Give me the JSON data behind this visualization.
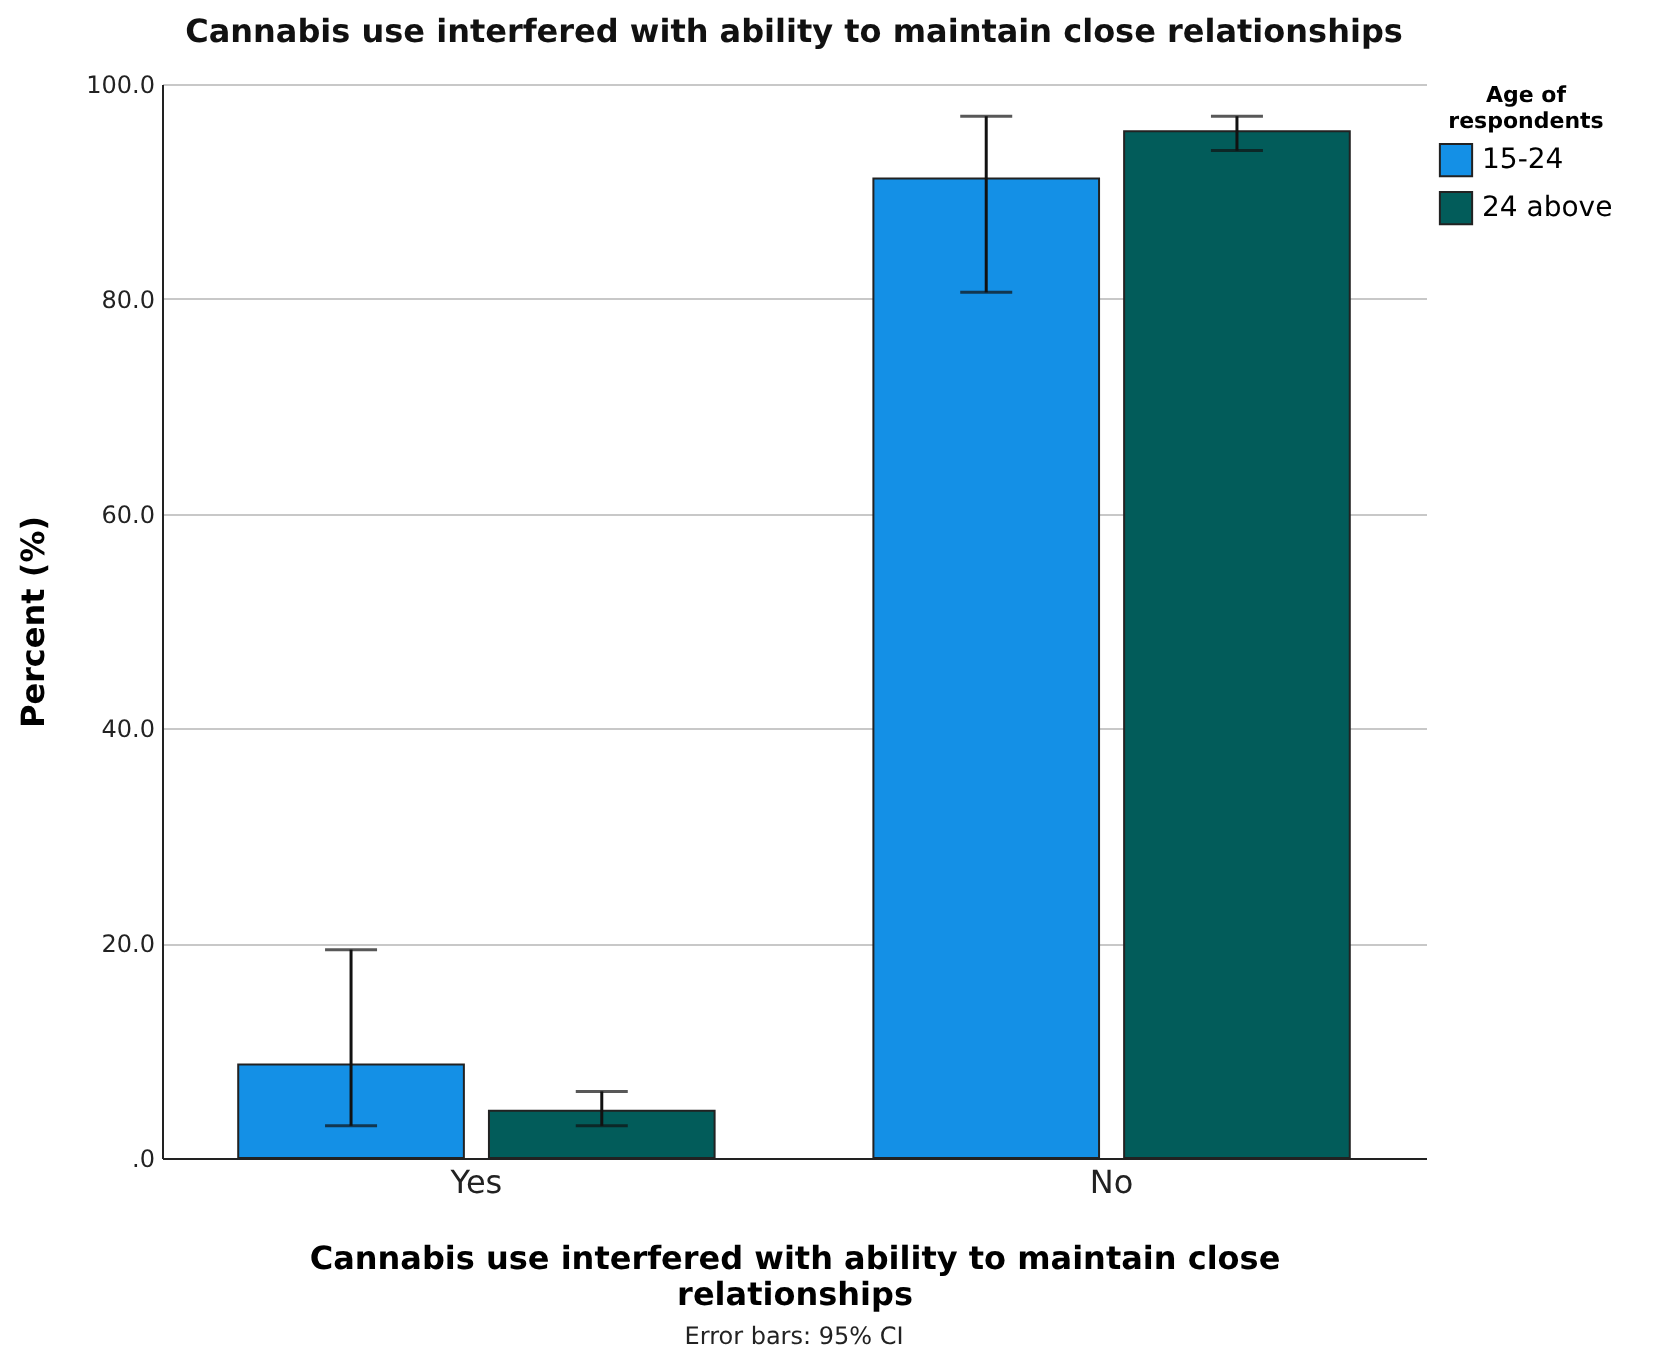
{
  "chart_data": {
    "type": "bar",
    "title": "Cannabis use interfered with ability to maintain close relationships",
    "xlabel": "Cannabis use interfered with ability to maintain close relationships",
    "ylabel": "Percent (%)",
    "legend_title": "Age of respondents",
    "annotations": [
      "Error bars: 95% CI"
    ],
    "categories": [
      "Yes",
      "No"
    ],
    "series": [
      {
        "name": "15-24",
        "color": "#1490e6",
        "values": [
          8.7,
          91.2
        ],
        "errors": [
          [
            3.0,
            19.4
          ],
          [
            80.6,
            97.0
          ]
        ]
      },
      {
        "name": "24 above",
        "color": "#025c5a",
        "values": [
          4.4,
          95.6
        ],
        "errors": [
          [
            3.0,
            6.2
          ],
          [
            93.8,
            97.0
          ]
        ]
      }
    ],
    "ylim": [
      0,
      100
    ],
    "yticks": [
      {
        "value": 0,
        "label": ".0"
      },
      {
        "value": 20,
        "label": "20.0"
      },
      {
        "value": 40,
        "label": "40.0"
      },
      {
        "value": 60,
        "label": "60.0"
      },
      {
        "value": 80,
        "label": "80.0"
      },
      {
        "value": 100,
        "label": "100.0"
      }
    ],
    "grid": "y",
    "legend": "right"
  }
}
